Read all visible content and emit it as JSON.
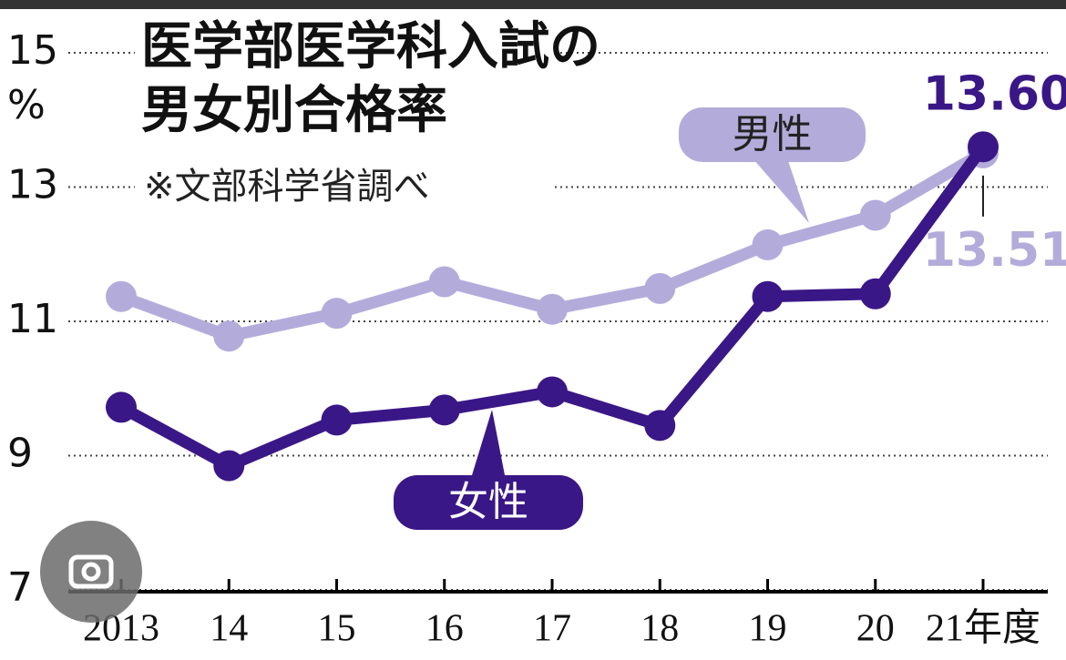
{
  "chart_data": {
    "type": "line",
    "title": [
      "医学部医学科入試の",
      "男女別合格率"
    ],
    "subtitle": "※文部科学省調べ",
    "y_unit": "%",
    "categories": [
      "2013",
      "14",
      "15",
      "16",
      "17",
      "18",
      "19",
      "20",
      "21年度"
    ],
    "series": [
      {
        "name": "男性",
        "color": "#b3acdb",
        "values": [
          11.37,
          10.78,
          11.12,
          11.59,
          11.18,
          11.49,
          12.14,
          12.58,
          13.51
        ],
        "value_labels": [
          null,
          null,
          null,
          null,
          null,
          null,
          null,
          null,
          "13.51"
        ]
      },
      {
        "name": "女性",
        "color": "#3a1787",
        "values": [
          9.72,
          8.85,
          9.53,
          9.68,
          9.95,
          9.45,
          11.37,
          11.41,
          13.6
        ],
        "value_labels": [
          null,
          null,
          null,
          null,
          null,
          null,
          null,
          null,
          "13.60"
        ]
      }
    ],
    "ylim": [
      7,
      15
    ],
    "yticks": [
      7,
      9,
      11,
      13,
      15
    ],
    "grid": true
  }
}
